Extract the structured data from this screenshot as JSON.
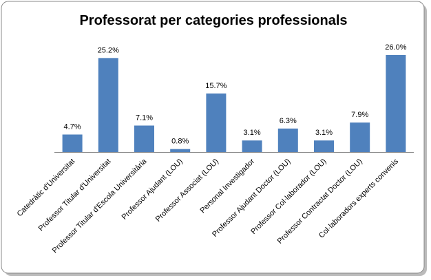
{
  "chart_data": {
    "type": "bar",
    "title": "Professorat per categories professionals",
    "categories": [
      "Catedràtic d'Universitat",
      "Professor Titular d'Universitat",
      "Professor Titular d'Escola Universitària",
      "Professor Ajudant (LOU)",
      "Professor Associat (LOU)",
      "Personal Investigador",
      "Professor Ajudant Doctor (LOU)",
      "Professor Col·laborador (LOU)",
      "Professor Contractat Doctor (LOU)",
      "Col·laboradors experts convenis"
    ],
    "values": [
      4.7,
      25.2,
      7.1,
      0.8,
      15.7,
      3.1,
      6.3,
      3.1,
      7.9,
      26.0
    ],
    "value_labels": [
      "4.7%",
      "25.2%",
      "7.1%",
      "0.8%",
      "15.7%",
      "3.1%",
      "6.3%",
      "3.1%",
      "7.9%",
      "26.0%"
    ],
    "color": "#4f81bd"
  }
}
